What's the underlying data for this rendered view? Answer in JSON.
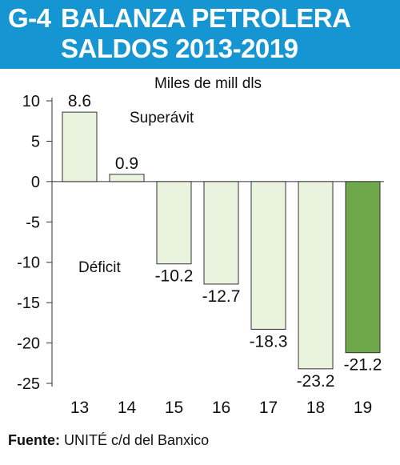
{
  "header": {
    "code": "G-4",
    "title_line1": "BALANZA PETROLERA",
    "title_line2": "SALDOS 2013-2019"
  },
  "colors": {
    "header_bg": "#1596d3",
    "bar_fill": "#eaf3de",
    "bar_highlight": "#6fa84a",
    "bar_stroke": "#333333"
  },
  "chart_data": {
    "type": "bar",
    "unit_label": "Miles de mill dls",
    "categories": [
      "13",
      "14",
      "15",
      "16",
      "17",
      "18",
      "19"
    ],
    "values": [
      8.6,
      0.9,
      -10.2,
      -12.7,
      -18.3,
      -23.2,
      -21.2
    ],
    "value_labels": [
      "8.6",
      "0.9",
      "-10.2",
      "-12.7",
      "-18.3",
      "-23.2",
      "-21.2"
    ],
    "highlight_index": 6,
    "yticks": [
      10,
      5,
      0,
      -5,
      -10,
      -15,
      -20,
      -25
    ],
    "ytick_labels": [
      "10",
      "5",
      "0",
      "-5",
      "-10",
      "-15",
      "-20",
      "-25"
    ],
    "ylim": [
      -25,
      10
    ],
    "annotations": {
      "positive": "Superávit",
      "negative": "Déficit"
    }
  },
  "footer": {
    "label": "Fuente:",
    "text": " UNITÉ c/d del Banxico"
  }
}
